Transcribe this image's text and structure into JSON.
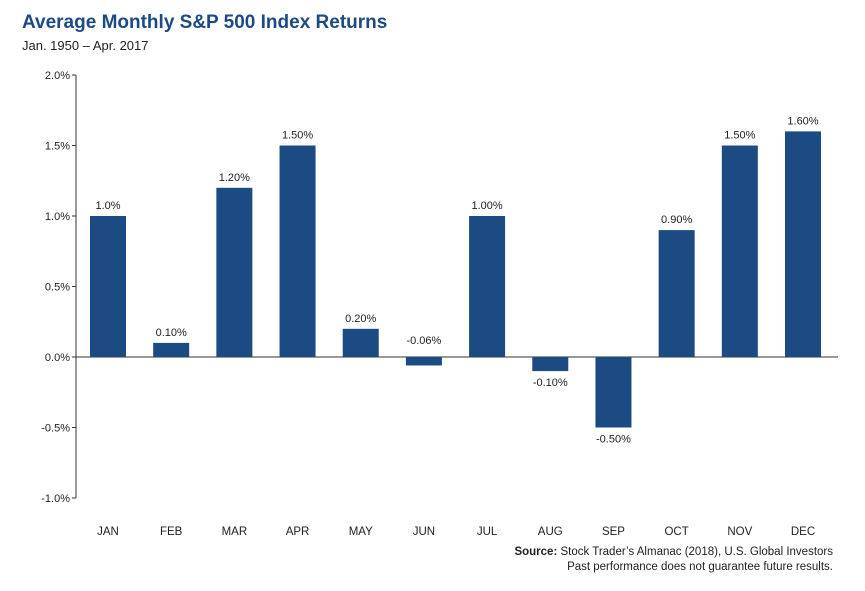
{
  "header": {
    "title": "Average Monthly S&P 500 Index Returns",
    "subtitle": "Jan. 1950 – Apr. 2017"
  },
  "footer": {
    "source_label": "Source:",
    "source_text": "Stock Trader’s Almanac (2018), U.S. Global Investors",
    "disclaimer": "Past performance does not guarantee future results."
  },
  "colors": {
    "bar": "#1c4a82",
    "title": "#1c4a82",
    "axis": "#333333",
    "text": "#222222"
  },
  "chart_data": {
    "type": "bar",
    "title": "Average Monthly S&P 500 Index Returns",
    "subtitle": "Jan. 1950 – Apr. 2017",
    "xlabel": "",
    "ylabel": "",
    "categories": [
      "JAN",
      "FEB",
      "MAR",
      "APR",
      "MAY",
      "JUN",
      "JUL",
      "AUG",
      "SEP",
      "OCT",
      "NOV",
      "DEC"
    ],
    "values": [
      1.0,
      0.1,
      1.2,
      1.5,
      0.2,
      -0.06,
      1.0,
      -0.1,
      -0.5,
      0.9,
      1.5,
      1.6
    ],
    "data_labels": [
      "1.0%",
      "0.10%",
      "1.20%",
      "1.50%",
      "0.20%",
      "-0.06%",
      "1.00%",
      "-0.10%",
      "-0.50%",
      "0.90%",
      "1.50%",
      "1.60%"
    ],
    "ylim": [
      -1.0,
      2.0
    ],
    "yticks": [
      2.0,
      1.5,
      1.0,
      0.5,
      0.0,
      -0.5,
      -1.0
    ],
    "ytick_labels": [
      "2.0%",
      "1.5%",
      "1.0%",
      "0.5%",
      "0.0%",
      "-0.5%",
      "-1.0%"
    ],
    "grid": false,
    "legend": "none"
  }
}
